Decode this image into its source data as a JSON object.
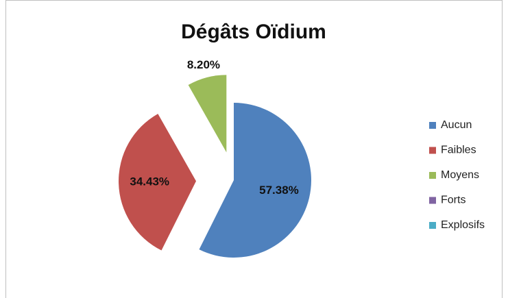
{
  "chart_data": {
    "type": "pie",
    "title": "Dégâts Oïdium",
    "categories": [
      "Aucun",
      "Faibles",
      "Moyens",
      "Forts",
      "Explosifs"
    ],
    "values": [
      57.38,
      34.43,
      8.2,
      0,
      0
    ],
    "value_labels": [
      "57.38%",
      "34.43%",
      "8.20%",
      null,
      null
    ],
    "colors": [
      "#4f81bd",
      "#c0504d",
      "#9bbb59",
      "#8064a2",
      "#4bacc6"
    ],
    "legend": "right"
  }
}
